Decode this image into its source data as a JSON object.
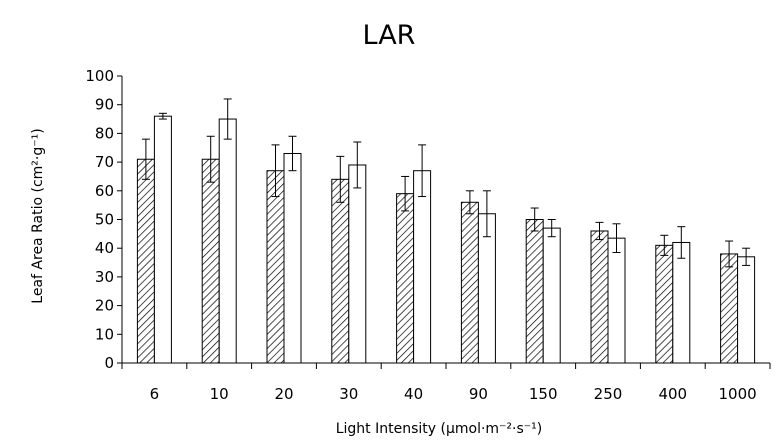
{
  "chart_data": {
    "type": "bar",
    "title": "LAR",
    "xlabel": "Light Intensity (μmol·m⁻²·s⁻¹)",
    "ylabel": "Leaf Area Ratio (cm²·g⁻¹)",
    "ylim": [
      0,
      100
    ],
    "yticks": [
      "0",
      "10",
      "20",
      "30",
      "40",
      "50",
      "60",
      "70",
      "80",
      "90",
      "100"
    ],
    "categories": [
      "6",
      "10",
      "20",
      "30",
      "40",
      "90",
      "150",
      "250",
      "400",
      "1000"
    ],
    "grid": false,
    "legend": "none",
    "series": [
      {
        "pattern": "hatched",
        "values": [
          71,
          71,
          67,
          64,
          59,
          56,
          50,
          46,
          41,
          38
        ],
        "error": [
          7,
          8,
          9,
          8,
          6,
          4,
          4,
          3,
          3.5,
          4.5
        ]
      },
      {
        "pattern": "white",
        "values": [
          86,
          85,
          73,
          69,
          67,
          52,
          47,
          43.5,
          42,
          37
        ],
        "error": [
          1,
          7,
          6,
          8,
          9,
          8,
          3,
          5,
          5.5,
          3
        ]
      }
    ]
  }
}
